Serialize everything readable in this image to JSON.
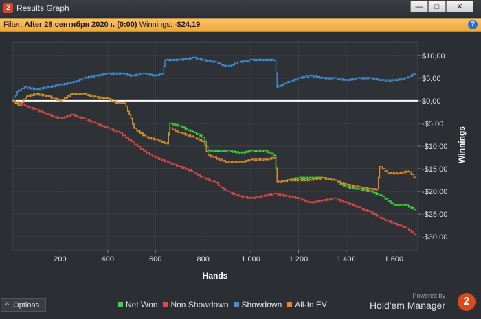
{
  "window": {
    "title": "Results Graph",
    "logo_text": "2",
    "minimize_glyph": "—",
    "maximize_glyph": "□",
    "close_glyph": "✕"
  },
  "filter": {
    "label": "Filter:",
    "value": "After 28 сентября 2020 г. (0:00)",
    "winnings_label": "Winnings:",
    "winnings_value": "-$24,19",
    "help_glyph": "?"
  },
  "options": {
    "label": "Options",
    "glyph": "^"
  },
  "brand": {
    "powered_by": "Powered by",
    "name": "Hold'em Manager",
    "badge": "2"
  },
  "chart_data": {
    "type": "line",
    "xlabel": "Hands",
    "ylabel": "Winnings",
    "xlim": [
      0,
      1700
    ],
    "ylim": [
      -33,
      13
    ],
    "x_ticks": [
      200,
      400,
      600,
      800,
      1000,
      1200,
      1400,
      1600
    ],
    "x_tick_labels": [
      "200",
      "400",
      "600",
      "800",
      "1 000",
      "1 200",
      "1 400",
      "1 600"
    ],
    "y_ticks": [
      10,
      5,
      0,
      -5,
      -10,
      -15,
      -20,
      -25,
      -30
    ],
    "y_tick_labels": [
      "$10,00",
      "$5,00",
      "$0,00",
      "-$5,00",
      "-$10,00",
      "-$15,00",
      "-$20,00",
      "-$25,00",
      "-$30,00"
    ],
    "grid": true,
    "legend_position": "bottom",
    "series": [
      {
        "name": "Net Won",
        "color": "#3dd63d",
        "points": [
          [
            0,
            0
          ],
          [
            30,
            -1
          ],
          [
            60,
            1
          ],
          [
            100,
            1.5
          ],
          [
            150,
            1
          ],
          [
            200,
            0
          ],
          [
            250,
            1.5
          ],
          [
            300,
            1.5
          ],
          [
            350,
            0.8
          ],
          [
            400,
            0.5
          ],
          [
            440,
            -0.5
          ],
          [
            470,
            -0.5
          ],
          [
            490,
            -3
          ],
          [
            510,
            -6
          ],
          [
            560,
            -8
          ],
          [
            600,
            -8.5
          ],
          [
            650,
            -9.5
          ],
          [
            660,
            -5
          ],
          [
            700,
            -5.5
          ],
          [
            760,
            -7
          ],
          [
            800,
            -8
          ],
          [
            820,
            -11
          ],
          [
            900,
            -11
          ],
          [
            960,
            -11.5
          ],
          [
            1000,
            -11
          ],
          [
            1060,
            -11
          ],
          [
            1100,
            -12
          ],
          [
            1110,
            -18
          ],
          [
            1160,
            -17.5
          ],
          [
            1200,
            -17
          ],
          [
            1250,
            -17
          ],
          [
            1300,
            -17
          ],
          [
            1350,
            -17.5
          ],
          [
            1400,
            -19
          ],
          [
            1450,
            -19.5
          ],
          [
            1500,
            -20
          ],
          [
            1550,
            -21
          ],
          [
            1600,
            -23
          ],
          [
            1650,
            -23
          ],
          [
            1690,
            -24
          ]
        ]
      },
      {
        "name": "Non Showdown",
        "color": "#e04848",
        "points": [
          [
            0,
            0
          ],
          [
            50,
            -1
          ],
          [
            100,
            -2
          ],
          [
            150,
            -3
          ],
          [
            200,
            -4
          ],
          [
            250,
            -3
          ],
          [
            300,
            -4
          ],
          [
            350,
            -5
          ],
          [
            400,
            -6
          ],
          [
            450,
            -7
          ],
          [
            500,
            -9
          ],
          [
            550,
            -11
          ],
          [
            600,
            -12.5
          ],
          [
            650,
            -13.5
          ],
          [
            700,
            -14.5
          ],
          [
            750,
            -15.5
          ],
          [
            800,
            -17
          ],
          [
            850,
            -18
          ],
          [
            900,
            -20
          ],
          [
            950,
            -21
          ],
          [
            1000,
            -21.5
          ],
          [
            1050,
            -21
          ],
          [
            1100,
            -20.5
          ],
          [
            1150,
            -21
          ],
          [
            1200,
            -21.5
          ],
          [
            1250,
            -22.5
          ],
          [
            1300,
            -22
          ],
          [
            1350,
            -21.5
          ],
          [
            1400,
            -22.5
          ],
          [
            1450,
            -23.5
          ],
          [
            1500,
            -24.5
          ],
          [
            1550,
            -26
          ],
          [
            1600,
            -27
          ],
          [
            1650,
            -28
          ],
          [
            1690,
            -29.5
          ]
        ]
      },
      {
        "name": "Showdown",
        "color": "#3f8fd6",
        "points": [
          [
            0,
            0
          ],
          [
            20,
            2
          ],
          [
            50,
            3
          ],
          [
            100,
            2.5
          ],
          [
            150,
            3
          ],
          [
            200,
            3.5
          ],
          [
            250,
            4
          ],
          [
            300,
            5
          ],
          [
            350,
            5.5
          ],
          [
            400,
            6
          ],
          [
            460,
            6
          ],
          [
            500,
            5.5
          ],
          [
            550,
            6
          ],
          [
            600,
            5.5
          ],
          [
            630,
            6
          ],
          [
            640,
            9
          ],
          [
            700,
            9
          ],
          [
            760,
            9.5
          ],
          [
            800,
            9
          ],
          [
            850,
            8.5
          ],
          [
            900,
            7.5
          ],
          [
            950,
            8.5
          ],
          [
            1000,
            9
          ],
          [
            1100,
            9
          ],
          [
            1110,
            3
          ],
          [
            1150,
            4
          ],
          [
            1200,
            5
          ],
          [
            1250,
            5.5
          ],
          [
            1300,
            5
          ],
          [
            1350,
            5
          ],
          [
            1400,
            4.5
          ],
          [
            1450,
            5
          ],
          [
            1500,
            5
          ],
          [
            1550,
            4.5
          ],
          [
            1600,
            4.5
          ],
          [
            1650,
            5
          ],
          [
            1690,
            6
          ]
        ]
      },
      {
        "name": "All-In EV",
        "color": "#e08a2a",
        "points": [
          [
            0,
            0
          ],
          [
            30,
            -1
          ],
          [
            60,
            1
          ],
          [
            100,
            1.5
          ],
          [
            150,
            1
          ],
          [
            200,
            0
          ],
          [
            250,
            1.5
          ],
          [
            300,
            1.5
          ],
          [
            350,
            0.8
          ],
          [
            400,
            0.5
          ],
          [
            440,
            -0.5
          ],
          [
            470,
            -0.5
          ],
          [
            490,
            -3
          ],
          [
            510,
            -6
          ],
          [
            560,
            -8
          ],
          [
            600,
            -8.5
          ],
          [
            650,
            -9.5
          ],
          [
            660,
            -6
          ],
          [
            700,
            -7
          ],
          [
            760,
            -8
          ],
          [
            800,
            -9
          ],
          [
            820,
            -12
          ],
          [
            900,
            -13.5
          ],
          [
            960,
            -13.5
          ],
          [
            1000,
            -13
          ],
          [
            1060,
            -13
          ],
          [
            1100,
            -12.5
          ],
          [
            1110,
            -18
          ],
          [
            1160,
            -17.5
          ],
          [
            1200,
            -17.5
          ],
          [
            1250,
            -17.5
          ],
          [
            1300,
            -17
          ],
          [
            1350,
            -17.5
          ],
          [
            1400,
            -18.5
          ],
          [
            1450,
            -19
          ],
          [
            1500,
            -19.5
          ],
          [
            1530,
            -19.5
          ],
          [
            1540,
            -14.5
          ],
          [
            1580,
            -16
          ],
          [
            1620,
            -16
          ],
          [
            1660,
            -15.5
          ],
          [
            1690,
            -17
          ]
        ]
      }
    ]
  }
}
